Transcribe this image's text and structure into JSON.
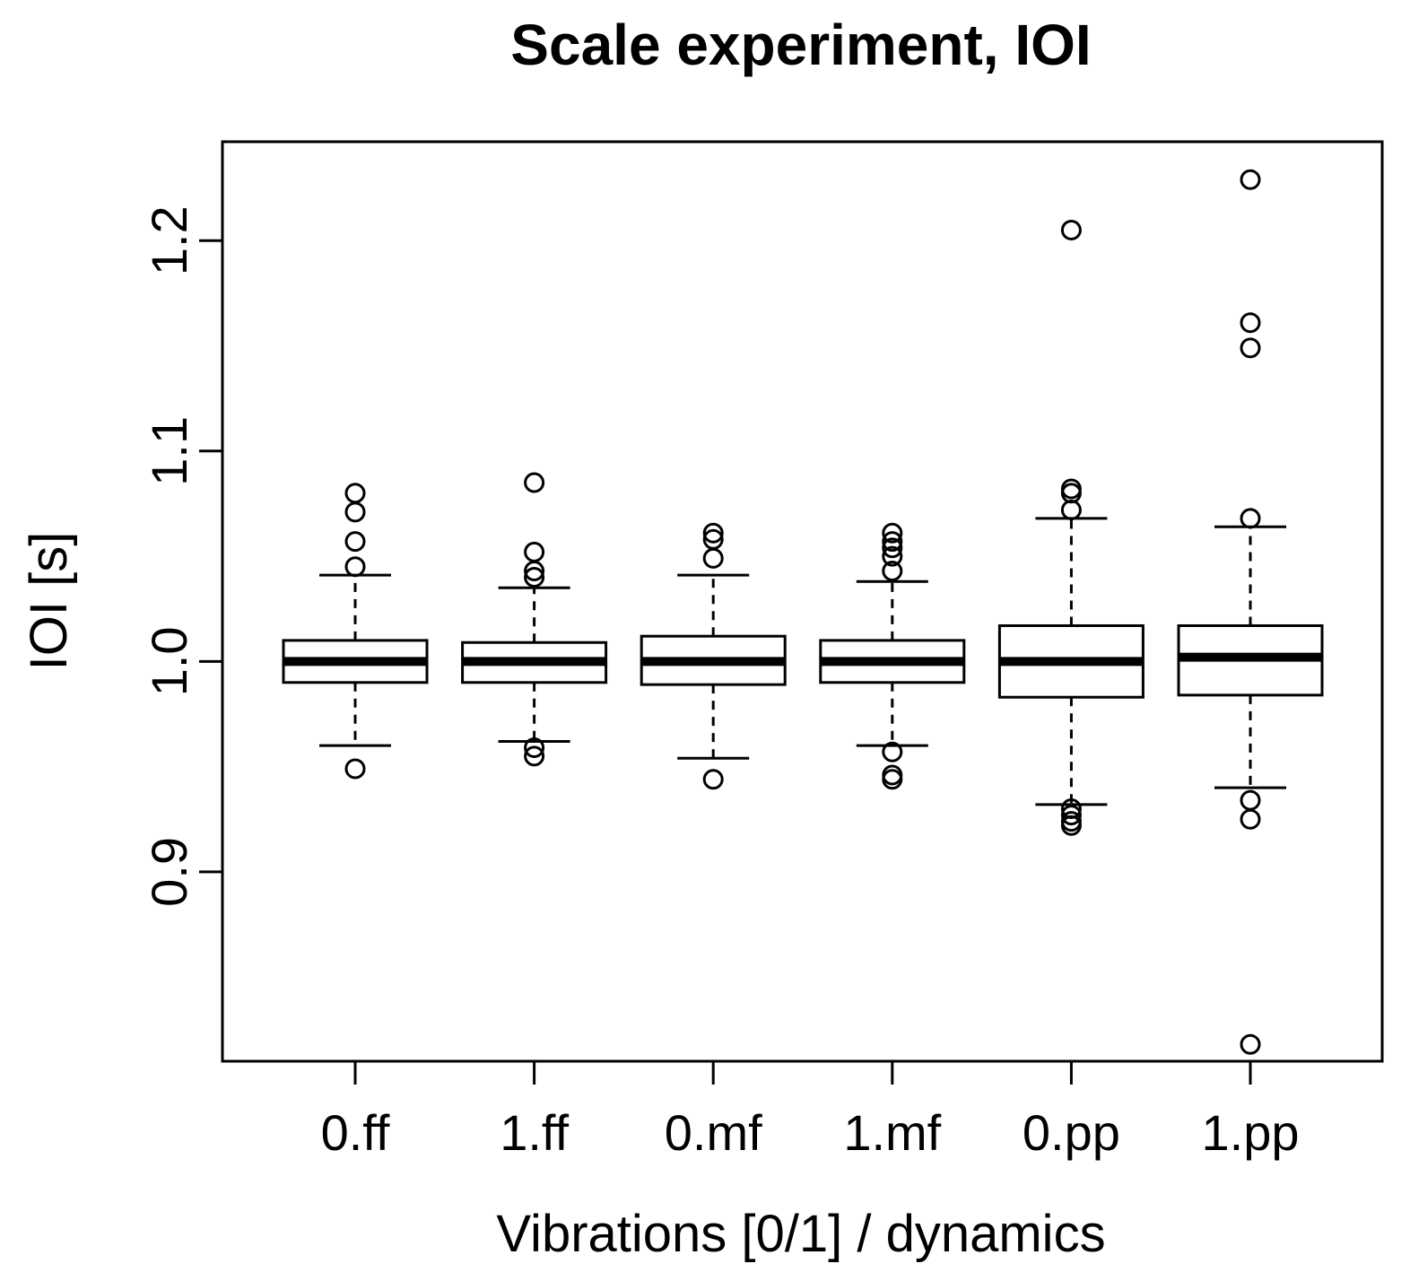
{
  "chart_data": {
    "type": "boxplot",
    "title": "Scale experiment, IOI",
    "xlabel": "Vibrations [0/1] / dynamics",
    "ylabel": "IOI [s]",
    "ylim": [
      0.81,
      1.247
    ],
    "yticks": [
      0.9,
      1.0,
      1.1,
      1.2
    ],
    "ytick_labels": [
      "0.9",
      "1.0",
      "1.1",
      "1.2"
    ],
    "categories": [
      "0.ff",
      "1.ff",
      "0.mf",
      "1.mf",
      "0.pp",
      "1.pp"
    ],
    "boxes": [
      {
        "name": "0.ff",
        "whisker_low": 0.96,
        "q1": 0.99,
        "median": 1.0,
        "q3": 1.01,
        "whisker_high": 1.041,
        "outliers": [
          0.949,
          1.045,
          1.057,
          1.071,
          1.08
        ]
      },
      {
        "name": "1.ff",
        "whisker_low": 0.962,
        "q1": 0.99,
        "median": 1.0,
        "q3": 1.009,
        "whisker_high": 1.035,
        "outliers": [
          0.955,
          0.959,
          1.04,
          1.043,
          1.052,
          1.085
        ]
      },
      {
        "name": "0.mf",
        "whisker_low": 0.954,
        "q1": 0.989,
        "median": 1.0,
        "q3": 1.012,
        "whisker_high": 1.041,
        "outliers": [
          0.944,
          1.049,
          1.058,
          1.061
        ]
      },
      {
        "name": "1.mf",
        "whisker_low": 0.96,
        "q1": 0.99,
        "median": 1.0,
        "q3": 1.01,
        "whisker_high": 1.038,
        "outliers": [
          0.944,
          0.946,
          0.957,
          1.043,
          1.05,
          1.054,
          1.057,
          1.061
        ]
      },
      {
        "name": "0.pp",
        "whisker_low": 0.932,
        "q1": 0.983,
        "median": 1.0,
        "q3": 1.017,
        "whisker_high": 1.068,
        "outliers": [
          0.922,
          0.924,
          0.927,
          0.93,
          1.072,
          1.08,
          1.082,
          1.205
        ]
      },
      {
        "name": "1.pp",
        "whisker_low": 0.94,
        "q1": 0.984,
        "median": 1.002,
        "q3": 1.017,
        "whisker_high": 1.064,
        "outliers": [
          0.818,
          0.925,
          0.934,
          1.068,
          1.149,
          1.161,
          1.229
        ]
      }
    ]
  }
}
